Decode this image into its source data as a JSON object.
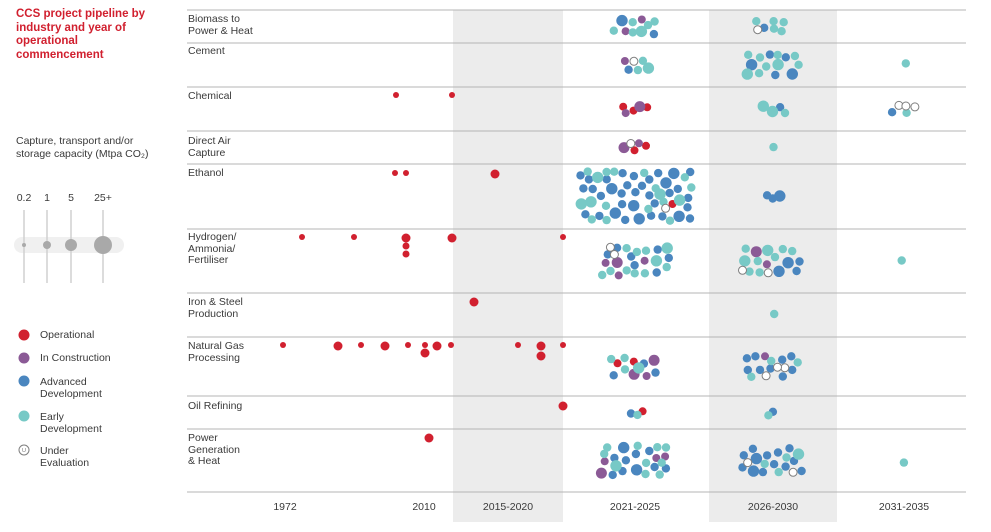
{
  "colors": {
    "operational": "#d1202f",
    "construction": "#8b5a96",
    "advanced": "#4a86bf",
    "early": "#77c9c6",
    "evaluation": "#7f7f7f",
    "title": "#d1202f",
    "band": "#ececec"
  },
  "chart_data": {
    "type": "scatter",
    "title": "CCS project pipeline by industry and year of operational commencement",
    "size_legend": {
      "label": "Capture, transport and/or storage capacity (Mtpa CO₂)",
      "sizes": [
        "0.2",
        "1",
        "5",
        "25+"
      ]
    },
    "legend": [
      {
        "key": "operational",
        "label": "Operational",
        "icon": "filled-circle"
      },
      {
        "key": "construction",
        "label": "In Construction",
        "icon": "filled-circle"
      },
      {
        "key": "advanced",
        "label": "Advanced Development",
        "icon": "filled-circle"
      },
      {
        "key": "early",
        "label": "Early Development",
        "icon": "filled-circle"
      },
      {
        "key": "evaluation",
        "label": "Under Evaluation",
        "icon": "u-circle"
      }
    ],
    "x_categories": [
      "1972",
      "2010",
      "2015-2020",
      "2021-2025",
      "2026-2030",
      "2031-2035"
    ],
    "rows": [
      {
        "label": "Biomass to Power & Heat",
        "counts": {
          "2021-2025": {
            "construction": 2,
            "advanced": 2,
            "early": 6
          },
          "2026-2030": {
            "advanced": 1,
            "early": 5,
            "evaluation": 1
          }
        }
      },
      {
        "label": "Cement",
        "counts": {
          "2021-2025": {
            "construction": 1,
            "advanced": 1,
            "early": 3,
            "evaluation": 1
          },
          "2026-2030": {
            "advanced": 5,
            "early": 9
          },
          "2031-2035": {
            "early": 1
          }
        }
      },
      {
        "label": "Chemical",
        "counts": {
          "pre-2021": {
            "operational": 2
          },
          "2021-2025": {
            "operational": 3,
            "construction": 2
          },
          "2026-2030": {
            "advanced": 1,
            "early": 3
          },
          "2031-2035": {
            "advanced": 1,
            "early": 1,
            "evaluation": 3
          }
        }
      },
      {
        "label": "Direct Air Capture",
        "counts": {
          "2021-2025": {
            "operational": 2,
            "construction": 2,
            "evaluation": 1
          },
          "2026-2030": {
            "early": 1
          }
        }
      },
      {
        "label": "Ethanol",
        "counts": {
          "pre-2021": {
            "operational": 3
          },
          "2021-2025": {
            "operational": 1,
            "advanced": 35,
            "early": 18,
            "evaluation": 1
          },
          "2026-2030": {
            "advanced": 3
          }
        }
      },
      {
        "label": "Hydrogen/ Ammonia/ Fertiliser",
        "counts": {
          "pre-2021": {
            "operational": 7
          },
          "2021-2025": {
            "construction": 4,
            "advanced": 7,
            "early": 11,
            "evaluation": 2
          },
          "2026-2030": {
            "construction": 2,
            "advanced": 4,
            "early": 9,
            "evaluation": 2
          },
          "2031-2035": {
            "early": 1
          }
        }
      },
      {
        "label": "Iron & Steel Production",
        "counts": {
          "pre-2021": {
            "operational": 1
          },
          "2026-2030": {
            "early": 1
          }
        }
      },
      {
        "label": "Natural Gas Processing",
        "counts": {
          "pre-2021": {
            "operational": 14
          },
          "2021-2025": {
            "operational": 2,
            "construction": 3,
            "advanced": 3,
            "early": 4
          },
          "2026-2030": {
            "construction": 1,
            "advanced": 9,
            "early": 3,
            "evaluation": 3
          }
        }
      },
      {
        "label": "Oil Refining",
        "counts": {
          "pre-2021": {
            "operational": 1
          },
          "2021-2025": {
            "operational": 1,
            "advanced": 1,
            "early": 1
          },
          "2026-2030": {
            "advanced": 1,
            "early": 1
          }
        }
      },
      {
        "label": "Power Generation & Heat",
        "counts": {
          "pre-2021": {
            "operational": 1
          },
          "2021-2025": {
            "construction": 4,
            "advanced": 10,
            "early": 10
          },
          "2026-2030": {
            "advanced": 13,
            "early": 4,
            "evaluation": 2
          },
          "2031-2035": {
            "early": 1
          }
        }
      }
    ]
  }
}
